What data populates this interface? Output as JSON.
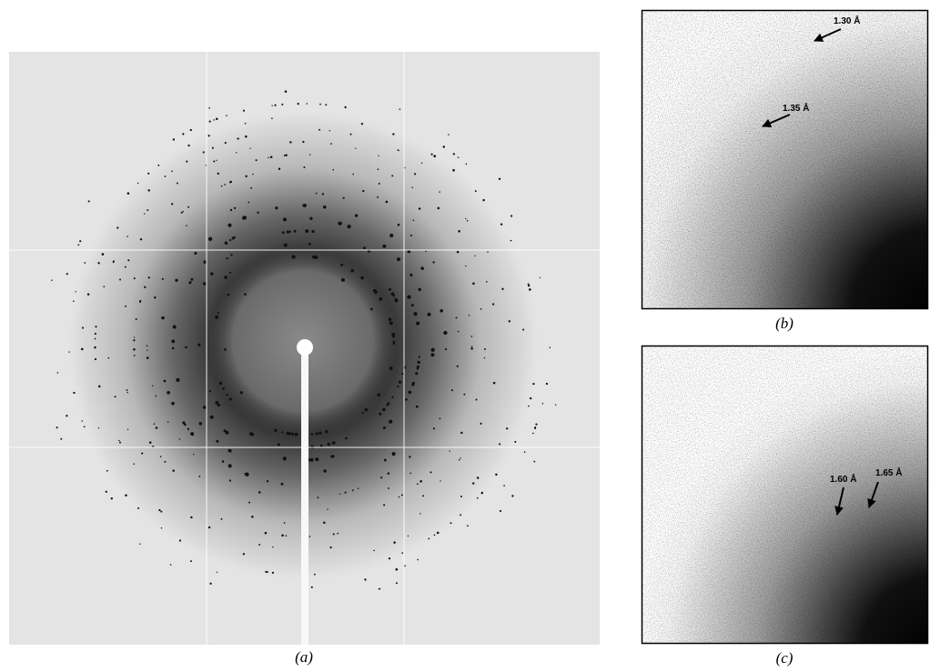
{
  "panels": [
    {
      "label": "(a)"
    },
    {
      "label": "(b)",
      "annotations": [
        "1.30 Å",
        "1.35 Å"
      ]
    },
    {
      "label": "(c)",
      "annotations": [
        "1.60 Å",
        "1.65 Å"
      ]
    }
  ]
}
